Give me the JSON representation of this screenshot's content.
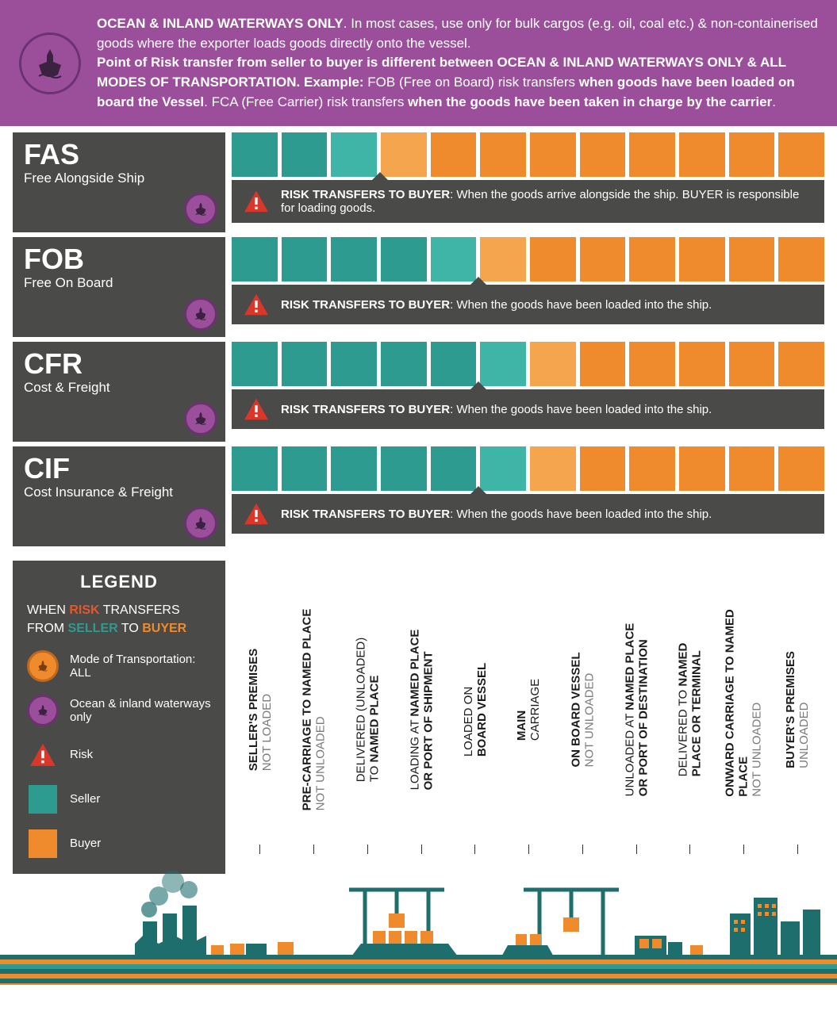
{
  "colors": {
    "purple": "#9b4f9b",
    "purple_dark": "#6a3370",
    "dark_gray": "#4a4a48",
    "seller_teal": "#2d9b8f",
    "seller_teal_light": "#3fb5a8",
    "buyer_orange": "#ef8b2c",
    "buyer_orange_light": "#f5a54e",
    "warn_red": "#d9372a",
    "text_gray": "#7a7a78"
  },
  "header": {
    "line1_bold": "OCEAN & INLAND WATERWAYS ONLY",
    "line1_rest": ". In most cases, use only for bulk cargos (e.g. oil, coal etc.) & non-containerised goods where the exporter loads goods directly onto the vessel.",
    "line2_a": "Point of Risk transfer from seller to buyer is different between OCEAN & INLAND WATERWAYS ONLY & ALL MODES OF TRANSPORTATION.  Example:",
    "line2_b": " FOB (Free on Board) risk transfers ",
    "line2_c": "when goods have been loaded on board the Vessel",
    "line2_d": ". FCA (Free Carrier) risk transfers ",
    "line2_e": "when the goods have been taken in charge by the carrier",
    "line2_f": "."
  },
  "blocks_per_row": 12,
  "terms": [
    {
      "code": "FAS",
      "name": "Free Alongside Ship",
      "seller_blocks": 3,
      "pointer_after_block": 3,
      "risk_label": "RISK TRANSFERS TO BUYER",
      "risk_text": ": When the goods arrive alongside the ship. BUYER is responsible for loading goods."
    },
    {
      "code": "FOB",
      "name": "Free On Board",
      "seller_blocks": 5,
      "pointer_after_block": 5,
      "risk_label": "RISK TRANSFERS TO BUYER",
      "risk_text": ": When the goods have been loaded into the ship."
    },
    {
      "code": "CFR",
      "name": "Cost & Freight",
      "seller_blocks": 6,
      "pointer_after_block": 5,
      "risk_label": "RISK TRANSFERS TO BUYER",
      "risk_text": ": When the goods have been loaded into the ship."
    },
    {
      "code": "CIF",
      "name": "Cost Insurance & Freight",
      "seller_blocks": 6,
      "pointer_after_block": 5,
      "risk_label": "RISK TRANSFERS TO BUYER",
      "risk_text": ": When the goods have been loaded into the ship."
    }
  ],
  "legend": {
    "title": "LEGEND",
    "sub_a": "WHEN ",
    "sub_risk": "RISK",
    "sub_b": " TRANSFERS FROM ",
    "sub_seller": "SELLER",
    "sub_c": " TO ",
    "sub_buyer": "BUYER",
    "items": [
      {
        "label": "Mode of Transportation: ALL",
        "icon": "orange-circle"
      },
      {
        "label": "Ocean & inland waterways only",
        "icon": "purple-circle"
      },
      {
        "label": "Risk",
        "icon": "warn"
      },
      {
        "label": "Seller",
        "icon": "sq-seller"
      },
      {
        "label": "Buyer",
        "icon": "sq-buyer"
      }
    ]
  },
  "stages": [
    {
      "main": "SELLER'S PREMISES",
      "sub": "NOT LOADED"
    },
    {
      "main": "PRE-CARRIAGE TO NAMED PLACE",
      "sub": "NOT UNLOADED"
    },
    {
      "main_a": "DELIVERED (UNLOADED)",
      "main_b": "TO ",
      "bold_b": "NAMED PLACE"
    },
    {
      "main_a": "LOADING AT ",
      "bold_a": "NAMED PLACE",
      "main_b": "",
      "bold_b": "OR PORT OF SHIPMENT"
    },
    {
      "main_a": "LOADED ON",
      "bold_b": "BOARD VESSEL"
    },
    {
      "bold_a": "MAIN",
      "main_b": "CARRIAGE"
    },
    {
      "bold_a": "ON BOARD VESSEL",
      "sub": "NOT UNLOADED"
    },
    {
      "main_a": "UNLOADED AT ",
      "bold_a": "NAMED PLACE",
      "bold_b": "OR PORT OF DESTINATION"
    },
    {
      "main_a": "DELIVERED TO ",
      "bold_a": "NAMED",
      "bold_b": "PLACE OR TERMINAL"
    },
    {
      "bold_a": "ONWARD CARRIAGE TO NAMED",
      "bold_b": "PLACE",
      "sub": " NOT UNLOADED"
    },
    {
      "bold_a": "BUYER'S PREMISES",
      "sub": "UNLOADED"
    }
  ]
}
